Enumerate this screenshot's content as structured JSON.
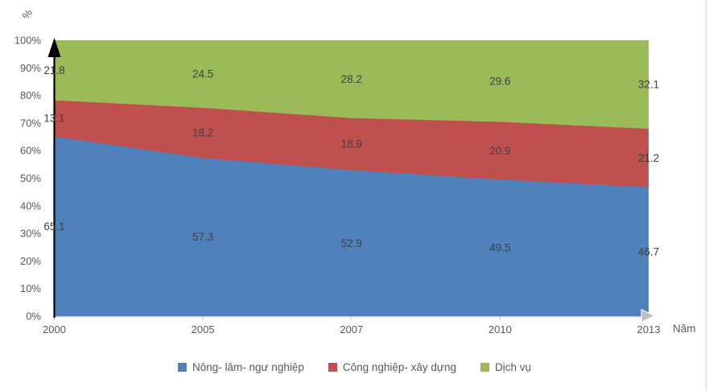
{
  "chart_data": {
    "type": "area",
    "stacked": true,
    "units": "percent",
    "title": "",
    "x": [
      "2000",
      "2005",
      "2007",
      "2010",
      "2013"
    ],
    "xlabel": "Năm",
    "ylabel": "%",
    "ylim": [
      0,
      100
    ],
    "y_ticks": [
      "0%",
      "10%",
      "20%",
      "30%",
      "40%",
      "50%",
      "60%",
      "70%",
      "80%",
      "90%",
      "100%"
    ],
    "grid": false,
    "legend_position": "bottom",
    "series": [
      {
        "name": "Nông- lâm- ngư nghiệp",
        "color": "#4F81BD",
        "values": [
          65.1,
          57.3,
          52.9,
          49.5,
          46.7
        ]
      },
      {
        "name": "Công nghiệp- xây dựng",
        "color": "#C0504D",
        "values": [
          13.1,
          18.2,
          18.9,
          20.9,
          21.2
        ]
      },
      {
        "name": "Dịch vụ",
        "color": "#9BBB59",
        "values": [
          21.8,
          24.5,
          28.2,
          29.6,
          32.1
        ]
      }
    ],
    "colors": {
      "y_axis": "#000000",
      "x_axis_arrow": "#BFBFBF",
      "tick_label": "#595959",
      "data_label": "#404040",
      "sheet_gridline": "#D9D9D9"
    }
  }
}
